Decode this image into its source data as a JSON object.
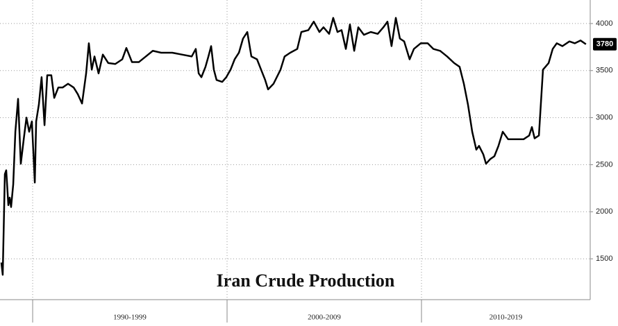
{
  "chart_data": {
    "type": "line",
    "title": "Iran Crude Production",
    "x": [
      1988.39,
      1988.46,
      1988.57,
      1988.64,
      1988.75,
      1988.82,
      1988.89,
      1989.0,
      1989.11,
      1989.25,
      1989.39,
      1989.54,
      1989.68,
      1989.82,
      1989.96,
      1990.11,
      1990.18,
      1990.32,
      1990.46,
      1990.61,
      1990.75,
      1990.96,
      1991.11,
      1991.32,
      1991.54,
      1991.82,
      1992.11,
      1992.32,
      1992.54,
      1992.75,
      1992.89,
      1993.04,
      1993.18,
      1993.39,
      1993.61,
      1993.89,
      1994.25,
      1994.61,
      1994.82,
      1995.11,
      1995.46,
      1995.82,
      1996.18,
      1996.61,
      1997.18,
      1997.68,
      1998.18,
      1998.39,
      1998.54,
      1998.68,
      1998.89,
      1999.04,
      1999.18,
      1999.32,
      1999.46,
      1999.75,
      1999.96,
      2000.18,
      2000.39,
      2000.61,
      2000.82,
      2001.04,
      2001.25,
      2001.54,
      2001.75,
      2001.96,
      2002.11,
      2002.39,
      2002.75,
      2002.96,
      2003.25,
      2003.61,
      2003.82,
      2004.18,
      2004.46,
      2004.75,
      2004.96,
      2005.25,
      2005.46,
      2005.68,
      2005.89,
      2006.11,
      2006.32,
      2006.54,
      2006.75,
      2007.04,
      2007.39,
      2007.75,
      2008.04,
      2008.25,
      2008.46,
      2008.68,
      2008.89,
      2009.11,
      2009.39,
      2009.61,
      2009.96,
      2010.32,
      2010.61,
      2010.96,
      2011.32,
      2011.68,
      2011.96,
      2012.18,
      2012.39,
      2012.61,
      2012.82,
      2012.96,
      2013.18,
      2013.32,
      2013.54,
      2013.75,
      2013.96,
      2014.18,
      2014.46,
      2014.82,
      2015.25,
      2015.54,
      2015.68,
      2015.82,
      2016.04,
      2016.25,
      2016.54,
      2016.75,
      2016.96,
      2017.25,
      2017.61,
      2017.89,
      2018.18,
      2018.46
    ],
    "values": [
      1460,
      1330,
      2400,
      2440,
      2070,
      2150,
      2050,
      2290,
      2850,
      3200,
      2510,
      2770,
      3000,
      2850,
      2960,
      2310,
      2960,
      3140,
      3430,
      2920,
      3450,
      3450,
      3210,
      3320,
      3320,
      3360,
      3320,
      3250,
      3150,
      3470,
      3790,
      3510,
      3650,
      3470,
      3670,
      3580,
      3570,
      3620,
      3740,
      3590,
      3590,
      3650,
      3710,
      3690,
      3690,
      3670,
      3650,
      3730,
      3470,
      3430,
      3540,
      3650,
      3760,
      3510,
      3400,
      3380,
      3430,
      3510,
      3620,
      3690,
      3840,
      3910,
      3650,
      3620,
      3510,
      3400,
      3300,
      3360,
      3510,
      3650,
      3690,
      3730,
      3910,
      3930,
      4020,
      3910,
      3960,
      3890,
      4060,
      3910,
      3930,
      3730,
      3990,
      3710,
      3960,
      3880,
      3910,
      3890,
      3960,
      4020,
      3760,
      4060,
      3840,
      3810,
      3620,
      3730,
      3790,
      3790,
      3730,
      3710,
      3650,
      3580,
      3540,
      3360,
      3140,
      2850,
      2660,
      2700,
      2610,
      2510,
      2560,
      2590,
      2700,
      2850,
      2770,
      2770,
      2770,
      2810,
      2900,
      2780,
      2810,
      3510,
      3580,
      3730,
      3790,
      3760,
      3810,
      3790,
      3820,
      3780
    ],
    "color": "#000000",
    "xlim": [
      1988.32,
      2018.68
    ],
    "xticks": [
      1990,
      2000,
      2010
    ],
    "period_labels": [
      "1990-1999",
      "2000-2009",
      "2010-2019"
    ],
    "ylim": [
      1066,
      4250
    ],
    "yticks": [
      1500,
      2000,
      2500,
      3000,
      3500,
      4000
    ],
    "grid": true
  }
}
